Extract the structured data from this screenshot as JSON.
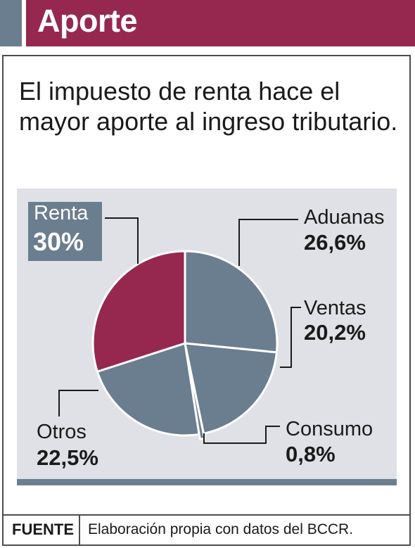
{
  "header": {
    "title": "Aporte"
  },
  "subtitle": "El impuesto de renta hace el mayor aporte al ingreso tributario.",
  "colors": {
    "header": "#962850",
    "accent": "#6b7e8f",
    "panel": "#dfe1e6",
    "highlight": "#962850",
    "slice": "#6b7e8f"
  },
  "chart_data": {
    "type": "pie",
    "title": "",
    "slices": [
      {
        "label": "Renta",
        "value": 30,
        "display": "30%",
        "highlight": true
      },
      {
        "label": "Aduanas",
        "value": 26.6,
        "display": "26,6%"
      },
      {
        "label": "Ventas",
        "value": 20.2,
        "display": "20,2%"
      },
      {
        "label": "Consumo",
        "value": 0.8,
        "display": "0,8%"
      },
      {
        "label": "Otros",
        "value": 22.5,
        "display": "22,5%"
      }
    ]
  },
  "footer": {
    "source_label": "FUENTE",
    "source_text": "Elaboración propia con datos del BCCR."
  }
}
